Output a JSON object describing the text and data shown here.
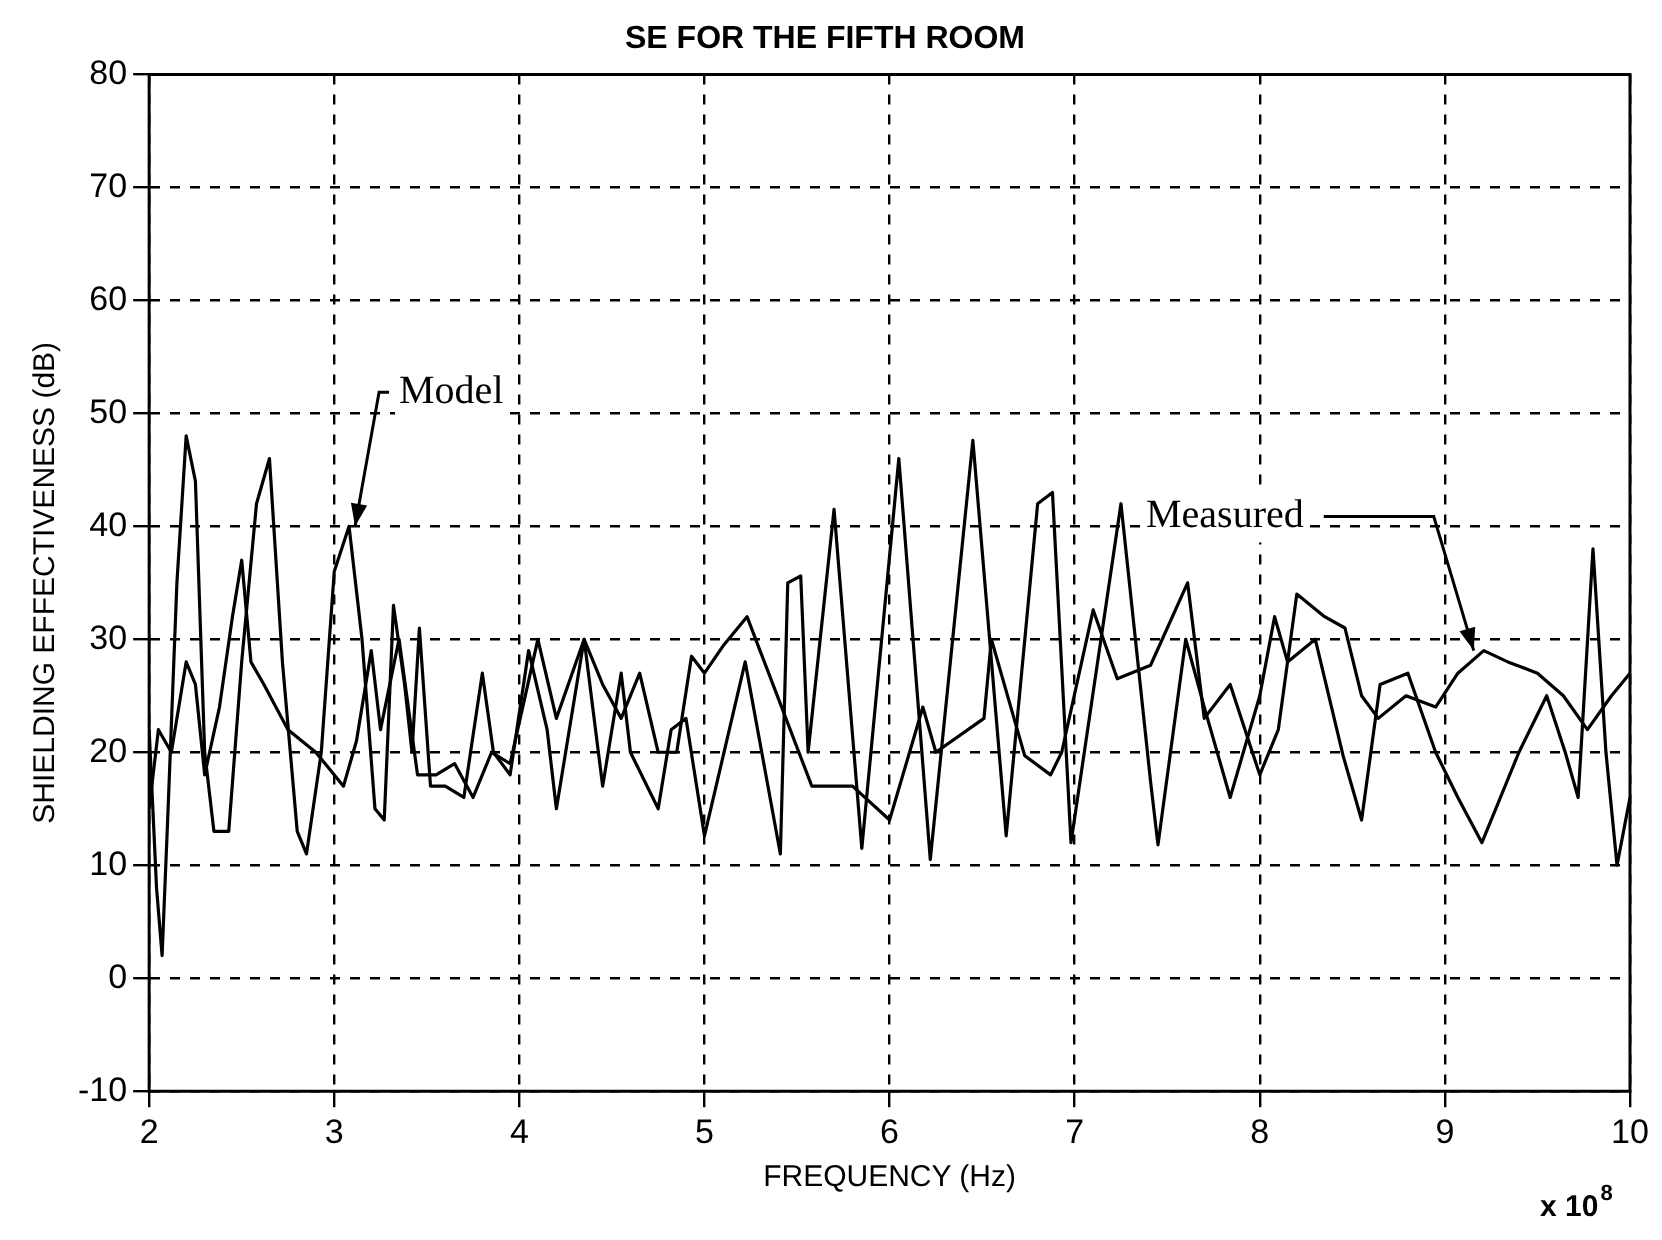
{
  "chart_data": {
    "type": "line",
    "title": "SE FOR THE FIFTH ROOM",
    "xlabel": "FREQUENCY (Hz)",
    "ylabel": "SHIELDING EFFECTIVENESS (dB)",
    "xlim": [
      2,
      10
    ],
    "ylim": [
      -10,
      80
    ],
    "xticks": [
      2,
      3,
      4,
      5,
      6,
      7,
      8,
      9,
      10
    ],
    "yticks": [
      -10,
      0,
      10,
      20,
      30,
      40,
      50,
      60,
      70,
      80
    ],
    "grid": true,
    "legend": false,
    "marker": "none",
    "line_style": "solid",
    "annotations": [
      {
        "text": "Model",
        "x": 3.08,
        "y": 40
      },
      {
        "text": "Measured",
        "x": 9.21,
        "y": 29
      },
      "x 10$^{8}$"
    ],
    "series": [
      {
        "color": "#000000",
        "x": [
          2.0,
          2.04,
          2.07,
          2.1,
          2.15,
          2.2,
          2.25,
          2.3,
          2.35,
          2.43,
          2.5,
          2.58,
          2.65,
          2.72,
          2.8,
          2.85,
          2.93,
          3.0,
          3.08,
          3.15,
          3.22,
          3.27,
          3.32,
          3.38,
          3.42,
          3.46,
          3.52,
          3.6,
          3.7,
          3.8,
          3.86,
          3.95,
          4.05,
          4.15,
          4.2,
          4.35,
          4.45,
          4.55,
          4.6,
          4.75,
          4.82,
          4.9,
          5.0,
          5.22,
          5.41,
          5.45,
          5.52,
          5.56,
          5.7,
          5.85,
          6.05,
          6.22,
          6.45,
          6.63,
          6.8,
          6.88,
          6.98,
          7.25,
          7.41,
          7.45,
          7.6,
          7.7,
          7.84,
          8.0,
          8.08,
          8.15,
          8.3,
          8.45,
          8.55,
          8.65,
          8.8,
          8.95,
          9.07,
          9.2,
          9.4,
          9.55,
          9.65,
          9.72,
          9.8,
          9.87,
          9.93,
          10.0
        ],
        "values": [
          22,
          8,
          2,
          14,
          35,
          48,
          44,
          20,
          13,
          13,
          28,
          42,
          46,
          28,
          13,
          11,
          20,
          36,
          40,
          30,
          15,
          14,
          33,
          26,
          20,
          31,
          17,
          17,
          16,
          27,
          20,
          18,
          29,
          22,
          15,
          30,
          17,
          27,
          20,
          15,
          22,
          23,
          12.6,
          28,
          11,
          35,
          35.6,
          20,
          41.5,
          11.5,
          46,
          10.5,
          47.6,
          12.6,
          42,
          43,
          12,
          42,
          17.4,
          11.8,
          30,
          24,
          16,
          25,
          32,
          28,
          30,
          19.7,
          14,
          26,
          27,
          20,
          16,
          12,
          20,
          25,
          20,
          16,
          38,
          20,
          10,
          16
        ]
      },
      {
        "color": "#000000",
        "x": [
          2.0,
          2.05,
          2.12,
          2.2,
          2.25,
          2.3,
          2.38,
          2.45,
          2.5,
          2.55,
          2.62,
          2.75,
          2.9,
          2.95,
          3.05,
          3.12,
          3.2,
          3.25,
          3.35,
          3.45,
          3.55,
          3.65,
          3.75,
          3.85,
          3.95,
          4.1,
          4.2,
          4.35,
          4.45,
          4.55,
          4.65,
          4.75,
          4.85,
          4.93,
          5.0,
          5.1,
          5.23,
          5.3,
          5.58,
          5.8,
          6.0,
          6.18,
          6.25,
          6.51,
          6.55,
          6.73,
          6.87,
          6.93,
          7.1,
          7.23,
          7.41,
          7.61,
          7.7,
          7.84,
          8.0,
          8.1,
          8.2,
          8.35,
          8.46,
          8.55,
          8.64,
          8.79,
          8.95,
          9.07,
          9.21,
          9.34,
          9.5,
          9.64,
          9.77,
          9.9,
          10.0
        ],
        "values": [
          15,
          22,
          20,
          28,
          26,
          18,
          24,
          32,
          37,
          28,
          26,
          22,
          20,
          19,
          17,
          21,
          29,
          22,
          30,
          18,
          18,
          19,
          16,
          20,
          19,
          30,
          23,
          30,
          26,
          23,
          27,
          20,
          20,
          28.5,
          27,
          29.4,
          32,
          29,
          17,
          17,
          14,
          24,
          20,
          23,
          30,
          19.7,
          18,
          20,
          32.6,
          26.5,
          27.7,
          35,
          23,
          26,
          18,
          22,
          34,
          32,
          31,
          25,
          23,
          25,
          24,
          27,
          29,
          28,
          27,
          25,
          22,
          25,
          27
        ]
      }
    ]
  }
}
